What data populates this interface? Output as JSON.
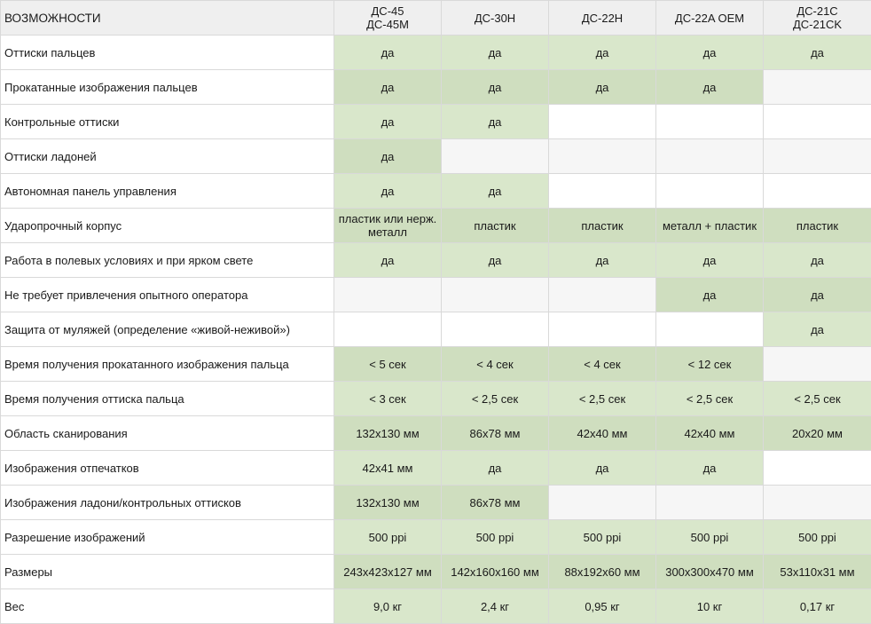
{
  "header": {
    "feature_col": "ВОЗМОЖНОСТИ",
    "models": [
      {
        "lines": [
          "ДС-45",
          "ДС-45M"
        ]
      },
      {
        "lines": [
          "ДС-30Н"
        ]
      },
      {
        "lines": [
          "ДС-22Н"
        ]
      },
      {
        "lines": [
          "ДС-22A OEM"
        ]
      },
      {
        "lines": [
          "ДС-21C",
          "ДС-21CK"
        ]
      }
    ]
  },
  "rows": [
    {
      "feature": "Оттиски пальцев",
      "cells": [
        "да",
        "да",
        "да",
        "да",
        "да"
      ]
    },
    {
      "feature": "Прокатанные изображения пальцев",
      "cells": [
        "да",
        "да",
        "да",
        "да",
        ""
      ]
    },
    {
      "feature": "Контрольные оттиски",
      "cells": [
        "да",
        "да",
        "",
        "",
        ""
      ]
    },
    {
      "feature": "Оттиски ладоней",
      "cells": [
        "да",
        "",
        "",
        "",
        ""
      ]
    },
    {
      "feature": "Автономная панель управления",
      "cells": [
        "да",
        "да",
        "",
        "",
        ""
      ]
    },
    {
      "feature": "Ударопрочный корпус",
      "cells": [
        "пластик или нерж. металл",
        "пластик",
        "пластик",
        "металл + пластик",
        "пластик"
      ]
    },
    {
      "feature": "Работа в полевых условиях и при ярком свете",
      "cells": [
        "да",
        "да",
        "да",
        "да",
        "да"
      ]
    },
    {
      "feature": "Не требует привлечения опытного оператора",
      "cells": [
        "",
        "",
        "",
        "да",
        "да"
      ]
    },
    {
      "feature": "Защита от муляжей (определение «живой-неживой»)",
      "cells": [
        "",
        "",
        "",
        "",
        "да"
      ]
    },
    {
      "feature": "Время получения прокатанного изображения пальца",
      "cells": [
        "< 5 сек",
        "< 4 сек",
        "< 4 сек",
        "< 12 сек",
        ""
      ]
    },
    {
      "feature": "Время получения оттиска пальца",
      "cells": [
        "< 3 сек",
        "< 2,5 сек",
        "< 2,5 сек",
        "< 2,5 сек",
        "< 2,5 сек"
      ]
    },
    {
      "feature": "Область сканирования",
      "cells": [
        "132x130 мм",
        "86x78 мм",
        "42x40 мм",
        "42x40 мм",
        "20x20 мм"
      ]
    },
    {
      "feature": "Изображения отпечатков",
      "cells": [
        "42x41 мм",
        "да",
        "да",
        "да",
        ""
      ]
    },
    {
      "feature": "Изображения ладони/контрольных оттисков",
      "cells": [
        "132x130 мм",
        "86x78 мм",
        "",
        "",
        ""
      ]
    },
    {
      "feature": "Разрешение изображений",
      "cells": [
        "500 ppi",
        "500 ppi",
        "500 ppi",
        "500 ppi",
        "500 ppi"
      ]
    },
    {
      "feature": "Размеры",
      "cells": [
        "243x423x127 мм",
        "142x160x160 мм",
        "88x192x60 мм",
        "300x300x470 мм",
        "53x110x31 мм"
      ]
    },
    {
      "feature": "Вес",
      "cells": [
        "9,0 кг",
        "2,4 кг",
        "0,95 кг",
        "10 кг",
        "0,17 кг"
      ]
    }
  ],
  "colors": {
    "header_bg": "#efefef",
    "supported_light": "#d9e7cb",
    "supported_dark": "#cfdebf",
    "empty_white": "#ffffff",
    "empty_gray": "#f6f6f6",
    "border": "#d9d9d9"
  }
}
